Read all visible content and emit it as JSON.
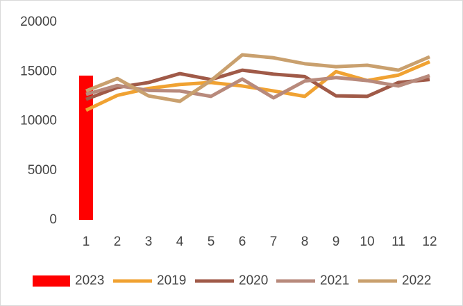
{
  "chart_data": {
    "type": "combo",
    "categories": [
      "1",
      "2",
      "3",
      "4",
      "5",
      "6",
      "7",
      "8",
      "9",
      "10",
      "11",
      "12"
    ],
    "series": [
      {
        "name": "2023",
        "kind": "bar",
        "color": "#ff0000",
        "values": [
          14600,
          null,
          null,
          null,
          null,
          null,
          null,
          null,
          null,
          null,
          null,
          null
        ]
      },
      {
        "name": "2019",
        "kind": "line",
        "color": "#f0a232",
        "values": [
          11100,
          12600,
          13300,
          13700,
          13900,
          13550,
          13050,
          12500,
          15000,
          14100,
          14650,
          16000
        ]
      },
      {
        "name": "2020",
        "kind": "line",
        "color": "#a05a48",
        "values": [
          12200,
          13400,
          13900,
          14800,
          14200,
          15150,
          14750,
          14500,
          12550,
          12500,
          13900,
          14200
        ]
      },
      {
        "name": "2021",
        "kind": "line",
        "color": "#b88a7c",
        "values": [
          12700,
          13600,
          13100,
          13050,
          12500,
          14250,
          12350,
          14050,
          14400,
          14100,
          13550,
          14600
        ]
      },
      {
        "name": "2022",
        "kind": "line",
        "color": "#c9a06e",
        "values": [
          13050,
          14300,
          12550,
          12000,
          14100,
          16700,
          16400,
          15800,
          15500,
          15650,
          15150,
          16500
        ]
      }
    ],
    "ylim": [
      0,
      20000
    ],
    "yticks": [
      0,
      5000,
      10000,
      15000,
      20000
    ],
    "grid": false,
    "legend": "bottom"
  }
}
